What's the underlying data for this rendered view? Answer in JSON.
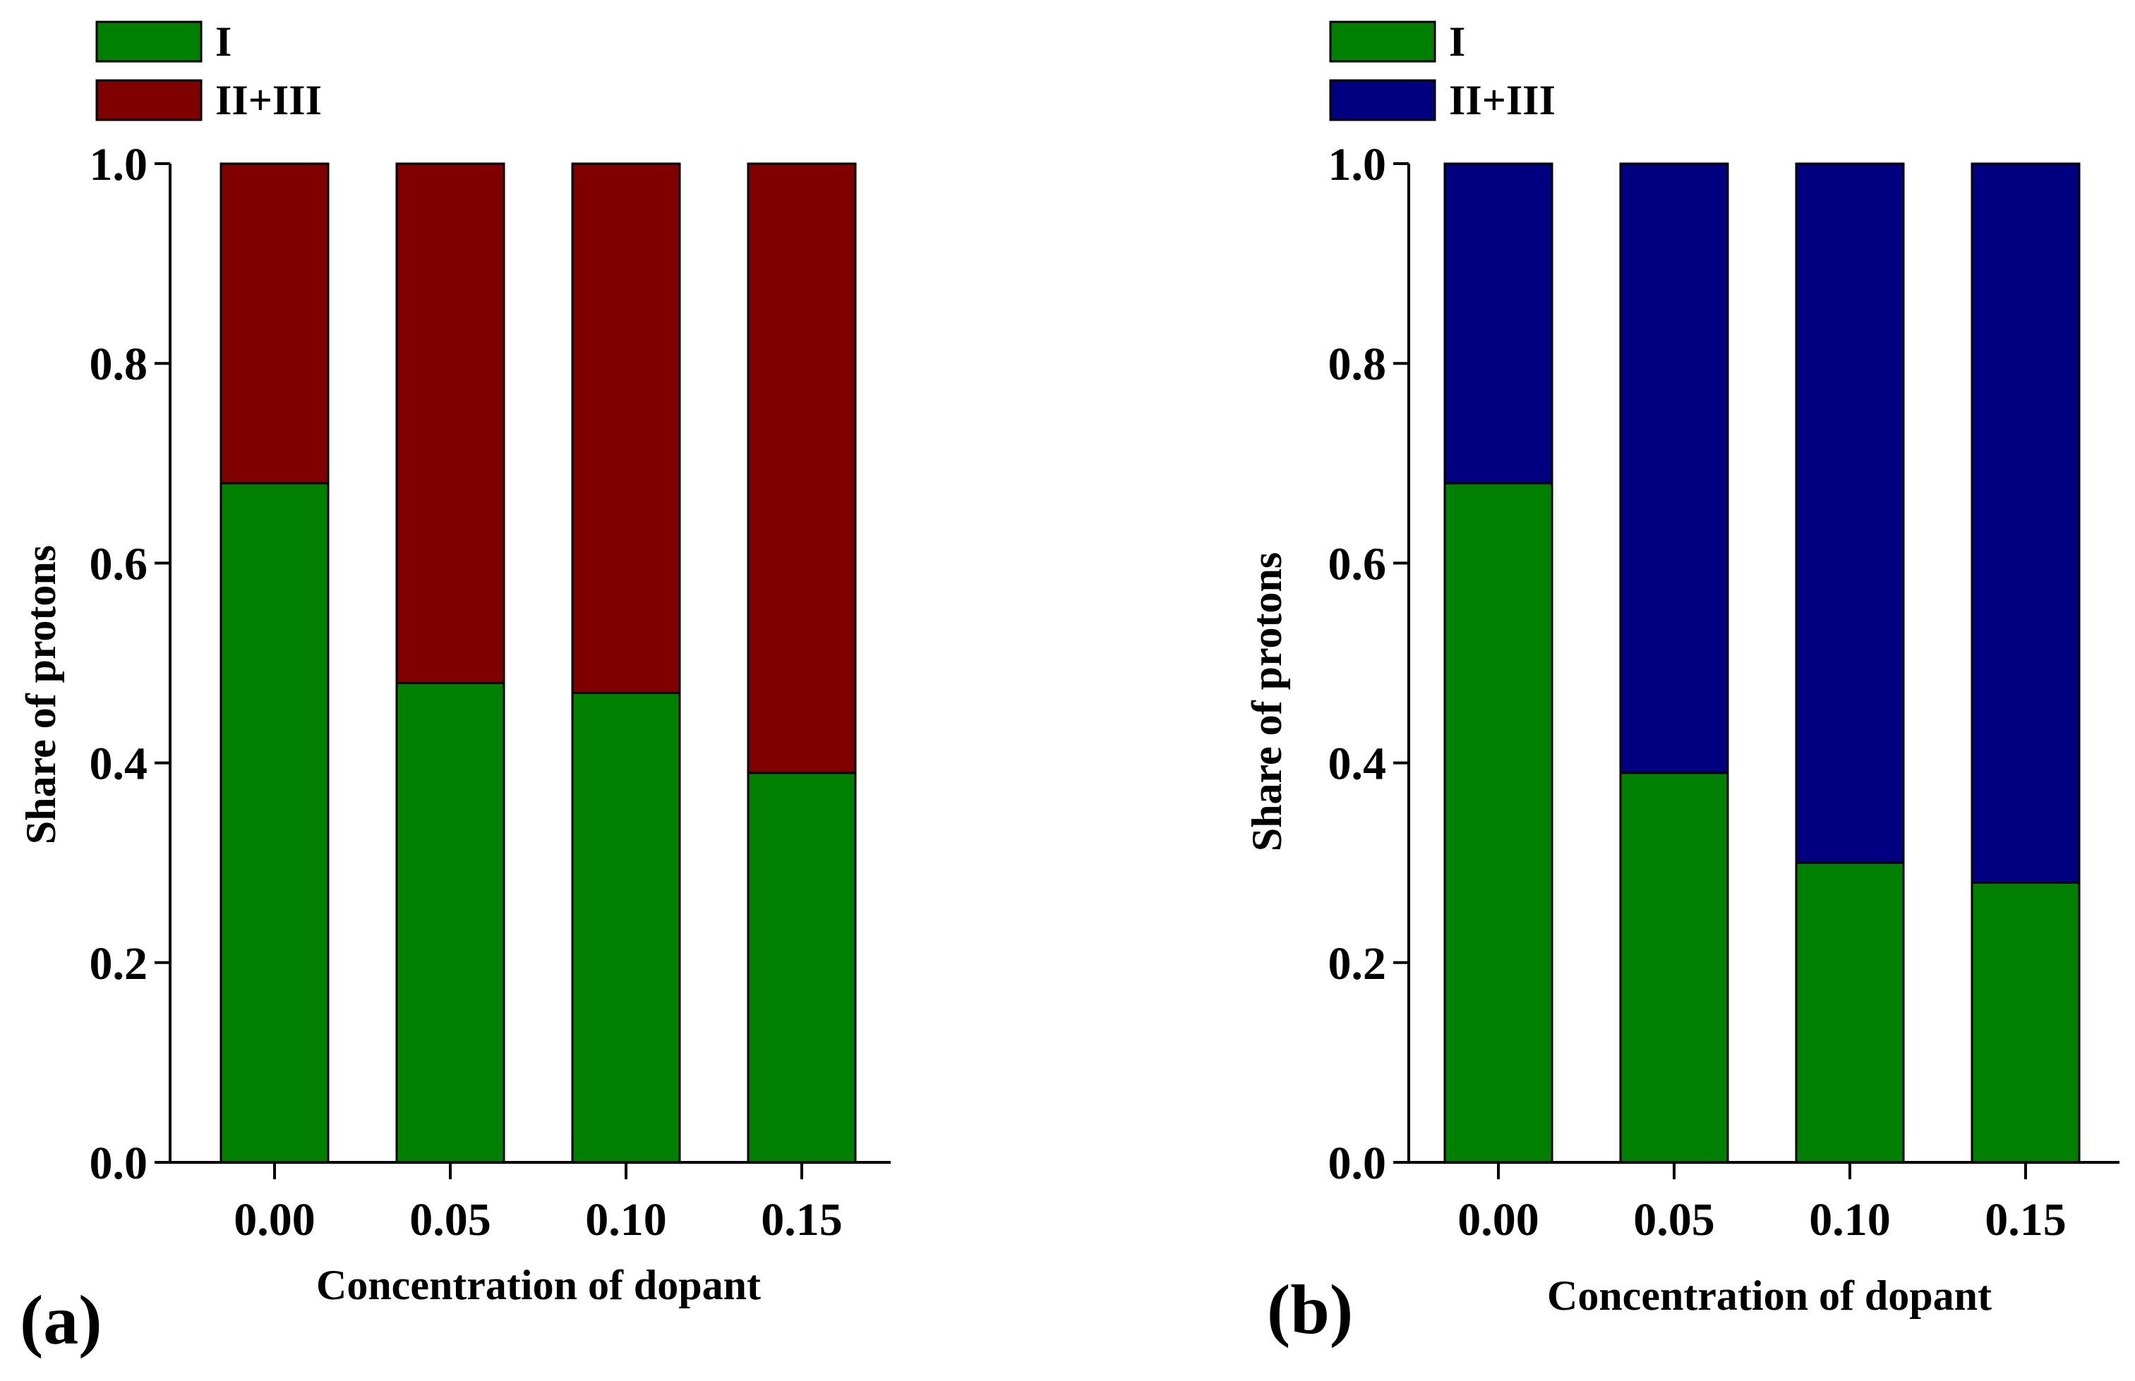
{
  "chart_data": [
    {
      "type": "bar",
      "stacked": true,
      "panel_label": "(a)",
      "xlabel": "Concentration of dopant",
      "ylabel": "Share of protons",
      "ylim": [
        0,
        1.0
      ],
      "yticks": [
        "0.0",
        "0.2",
        "0.4",
        "0.6",
        "0.8",
        "1.0"
      ],
      "ytick_values": [
        0,
        0.2,
        0.4,
        0.6,
        0.8,
        1.0
      ],
      "categories": [
        "0.00",
        "0.05",
        "0.10",
        "0.15"
      ],
      "legend_position": "top-left",
      "series": [
        {
          "name": "I",
          "color": "#008000",
          "values": [
            0.68,
            0.48,
            0.47,
            0.39
          ]
        },
        {
          "name": "II+III",
          "color": "#800000",
          "values": [
            0.32,
            0.52,
            0.53,
            0.61
          ]
        }
      ]
    },
    {
      "type": "bar",
      "stacked": true,
      "panel_label": "(b)",
      "xlabel": "Concentration of dopant",
      "ylabel": "Share of protons",
      "ylim": [
        0,
        1.0
      ],
      "yticks": [
        "0.0",
        "0.2",
        "0.4",
        "0.6",
        "0.8",
        "1.0"
      ],
      "ytick_values": [
        0,
        0.2,
        0.4,
        0.6,
        0.8,
        1.0
      ],
      "categories": [
        "0.00",
        "0.05",
        "0.10",
        "0.15"
      ],
      "legend_position": "top-left",
      "series": [
        {
          "name": "I",
          "color": "#008000",
          "values": [
            0.68,
            0.39,
            0.3,
            0.28
          ]
        },
        {
          "name": "II+III",
          "color": "#000080",
          "values": [
            0.32,
            0.61,
            0.7,
            0.72
          ]
        }
      ]
    }
  ]
}
